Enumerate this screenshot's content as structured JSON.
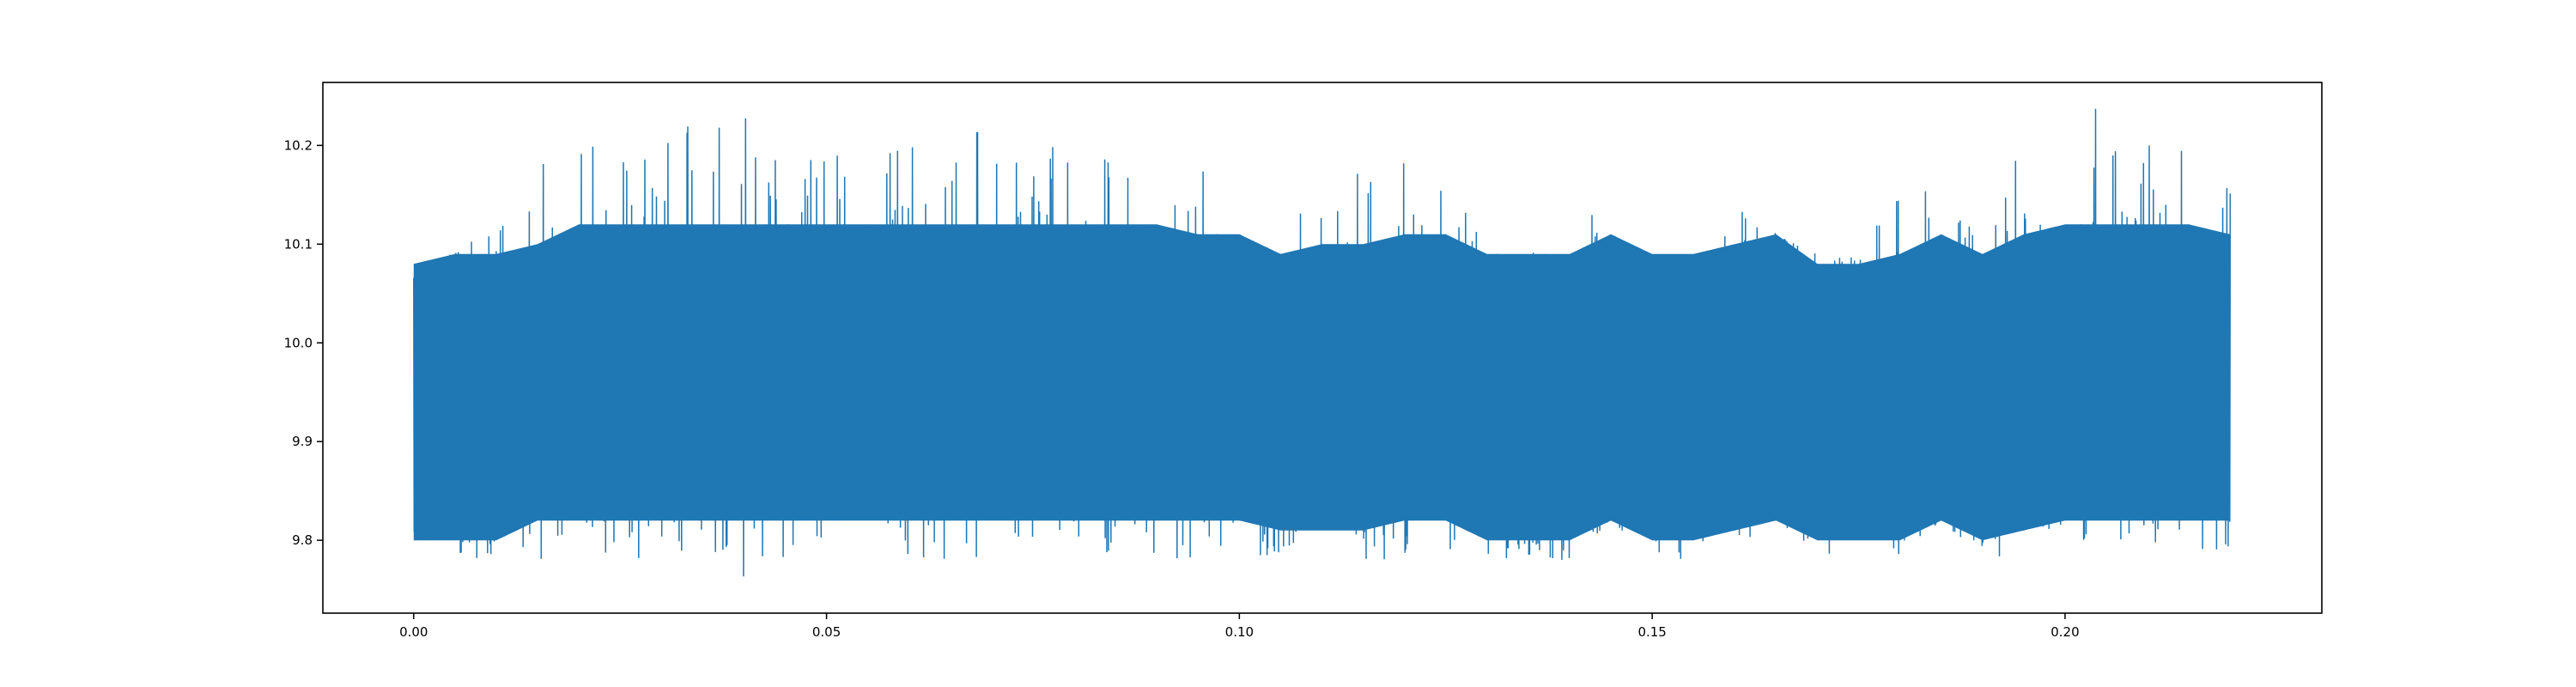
{
  "chart_data": {
    "type": "line",
    "title": "",
    "xlabel": "",
    "ylabel": "",
    "xlim": [
      -0.011,
      0.2311
    ],
    "ylim": [
      9.7262,
      10.2638
    ],
    "x_range": [
      0.0,
      0.22
    ],
    "x_ticks": [
      0.0,
      0.05,
      0.1,
      0.15,
      0.2
    ],
    "x_tick_labels": [
      "0.00",
      "0.05",
      "0.10",
      "0.15",
      "0.20"
    ],
    "y_ticks": [
      9.8,
      9.9,
      10.0,
      10.1,
      10.2
    ],
    "y_tick_labels": [
      "9.8",
      "9.9",
      "10.0",
      "10.1",
      "10.2"
    ],
    "grid": false,
    "legend": "none",
    "series": [
      {
        "color": "#1f77b4",
        "envelope": [
          {
            "x": 0.0,
            "core_low": 9.8,
            "core_high": 10.08,
            "spike_high": 10.08,
            "spike_low": 9.78
          },
          {
            "x": 0.005,
            "core_low": 9.8,
            "core_high": 10.09,
            "spike_high": 10.1,
            "spike_low": 9.78
          },
          {
            "x": 0.01,
            "core_low": 9.8,
            "core_high": 10.09,
            "spike_high": 10.11,
            "spike_low": 9.78
          },
          {
            "x": 0.015,
            "core_low": 9.82,
            "core_high": 10.1,
            "spike_high": 10.22,
            "spike_low": 9.77
          },
          {
            "x": 0.02,
            "core_low": 9.82,
            "core_high": 10.12,
            "spike_high": 10.21,
            "spike_low": 9.78
          },
          {
            "x": 0.03,
            "core_low": 9.82,
            "core_high": 10.12,
            "spike_high": 10.2,
            "spike_low": 9.78
          },
          {
            "x": 0.035,
            "core_low": 9.82,
            "core_high": 10.12,
            "spike_high": 10.23,
            "spike_low": 9.78
          },
          {
            "x": 0.04,
            "core_low": 9.82,
            "core_high": 10.12,
            "spike_high": 10.24,
            "spike_low": 9.76
          },
          {
            "x": 0.05,
            "core_low": 9.82,
            "core_high": 10.12,
            "spike_high": 10.2,
            "spike_low": 9.77
          },
          {
            "x": 0.06,
            "core_low": 9.82,
            "core_high": 10.12,
            "spike_high": 10.2,
            "spike_low": 9.78
          },
          {
            "x": 0.07,
            "core_low": 9.82,
            "core_high": 10.12,
            "spike_high": 10.23,
            "spike_low": 9.78
          },
          {
            "x": 0.08,
            "core_low": 9.82,
            "core_high": 10.12,
            "spike_high": 10.21,
            "spike_low": 9.78
          },
          {
            "x": 0.09,
            "core_low": 9.82,
            "core_high": 10.12,
            "spike_high": 10.24,
            "spike_low": 9.78
          },
          {
            "x": 0.095,
            "core_low": 9.82,
            "core_high": 10.11,
            "spike_high": 10.19,
            "spike_low": 9.78
          },
          {
            "x": 0.1,
            "core_low": 9.82,
            "core_high": 10.11,
            "spike_high": 10.11,
            "spike_low": 9.79
          },
          {
            "x": 0.105,
            "core_low": 9.81,
            "core_high": 10.09,
            "spike_high": 10.09,
            "spike_low": 9.78
          },
          {
            "x": 0.11,
            "core_low": 9.81,
            "core_high": 10.1,
            "spike_high": 10.19,
            "spike_low": 9.78
          },
          {
            "x": 0.115,
            "core_low": 9.81,
            "core_high": 10.1,
            "spike_high": 10.17,
            "spike_low": 9.78
          },
          {
            "x": 0.12,
            "core_low": 9.82,
            "core_high": 10.11,
            "spike_high": 10.19,
            "spike_low": 9.78
          },
          {
            "x": 0.125,
            "core_low": 9.82,
            "core_high": 10.11,
            "spike_high": 10.19,
            "spike_low": 9.79
          },
          {
            "x": 0.13,
            "core_low": 9.8,
            "core_high": 10.09,
            "spike_high": 10.09,
            "spike_low": 9.78
          },
          {
            "x": 0.135,
            "core_low": 9.8,
            "core_high": 10.09,
            "spike_high": 10.09,
            "spike_low": 9.78
          },
          {
            "x": 0.14,
            "core_low": 9.8,
            "core_high": 10.09,
            "spike_high": 10.16,
            "spike_low": 9.78
          },
          {
            "x": 0.145,
            "core_low": 9.82,
            "core_high": 10.11,
            "spike_high": 10.11,
            "spike_low": 9.82
          },
          {
            "x": 0.15,
            "core_low": 9.8,
            "core_high": 10.09,
            "spike_high": 10.1,
            "spike_low": 9.78
          },
          {
            "x": 0.155,
            "core_low": 9.8,
            "core_high": 10.09,
            "spike_high": 10.16,
            "spike_low": 9.78
          },
          {
            "x": 0.16,
            "core_low": 9.81,
            "core_high": 10.1,
            "spike_high": 10.17,
            "spike_low": 9.78
          },
          {
            "x": 0.165,
            "core_low": 9.82,
            "core_high": 10.11,
            "spike_high": 10.11,
            "spike_low": 9.82
          },
          {
            "x": 0.17,
            "core_low": 9.8,
            "core_high": 10.08,
            "spike_high": 10.09,
            "spike_low": 9.78
          },
          {
            "x": 0.175,
            "core_low": 9.8,
            "core_high": 10.08,
            "spike_high": 10.09,
            "spike_low": 9.78
          },
          {
            "x": 0.18,
            "core_low": 9.8,
            "core_high": 10.09,
            "spike_high": 10.16,
            "spike_low": 9.78
          },
          {
            "x": 0.185,
            "core_low": 9.82,
            "core_high": 10.11,
            "spike_high": 10.16,
            "spike_low": 9.82
          },
          {
            "x": 0.19,
            "core_low": 9.8,
            "core_high": 10.09,
            "spike_high": 10.1,
            "spike_low": 9.78
          },
          {
            "x": 0.195,
            "core_low": 9.81,
            "core_high": 10.11,
            "spike_high": 10.22,
            "spike_low": 9.78
          },
          {
            "x": 0.2,
            "core_low": 9.82,
            "core_high": 10.12,
            "spike_high": 10.23,
            "spike_low": 9.79
          },
          {
            "x": 0.205,
            "core_low": 9.82,
            "core_high": 10.12,
            "spike_high": 10.24,
            "spike_low": 9.79
          },
          {
            "x": 0.21,
            "core_low": 9.82,
            "core_high": 10.12,
            "spike_high": 10.2,
            "spike_low": 9.79
          },
          {
            "x": 0.215,
            "core_low": 9.82,
            "core_high": 10.12,
            "spike_high": 10.22,
            "spike_low": 9.79
          },
          {
            "x": 0.22,
            "core_low": 9.82,
            "core_high": 10.11,
            "spike_high": 10.16,
            "spike_low": 9.79
          }
        ]
      }
    ]
  }
}
